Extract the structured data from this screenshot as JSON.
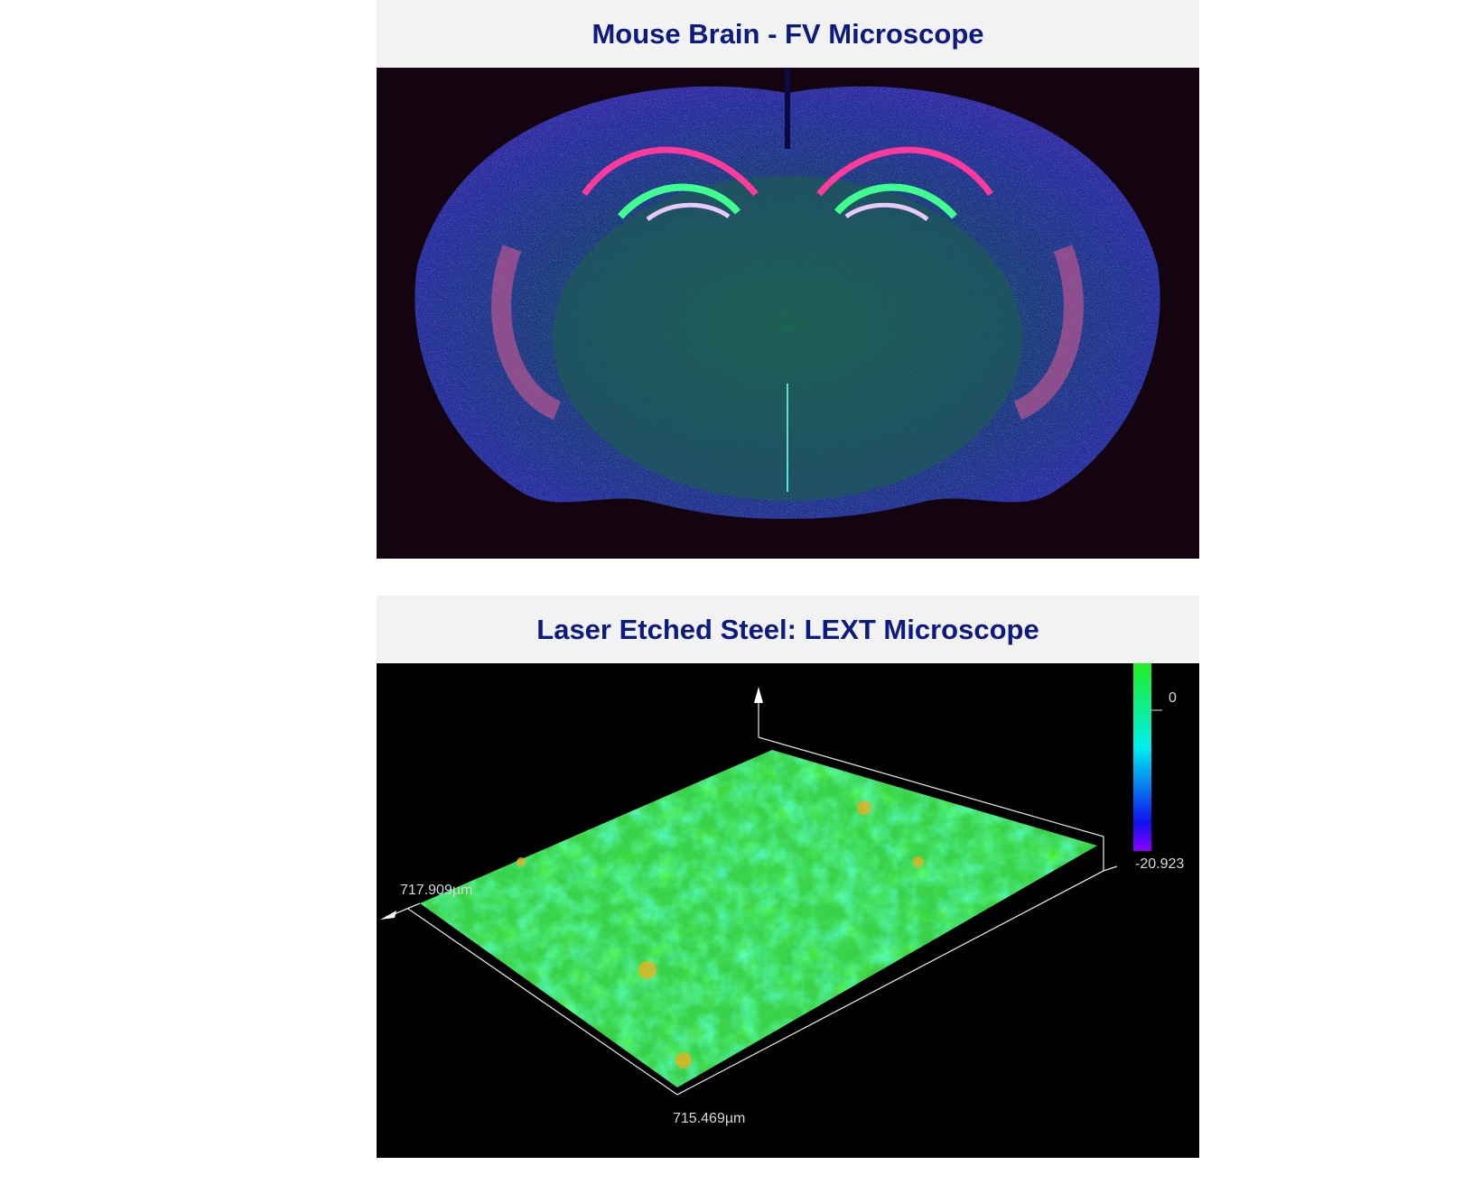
{
  "panels": [
    {
      "title": "Mouse Brain - FV Microscope",
      "image": "fluorescence-micrograph-mouse-brain-section"
    },
    {
      "title": "Laser Etched Steel: LEXT Microscope",
      "image": "3d-surface-height-map-steel",
      "colorbar": {
        "max_label": "0",
        "min_label": "-20.923",
        "colors": [
          "#22ee22",
          "#00eeee",
          "#1010ee",
          "#8a00ff"
        ]
      },
      "axis_labels": {
        "y_extent": "717.909µm",
        "x_extent": "715.469µm"
      }
    }
  ]
}
